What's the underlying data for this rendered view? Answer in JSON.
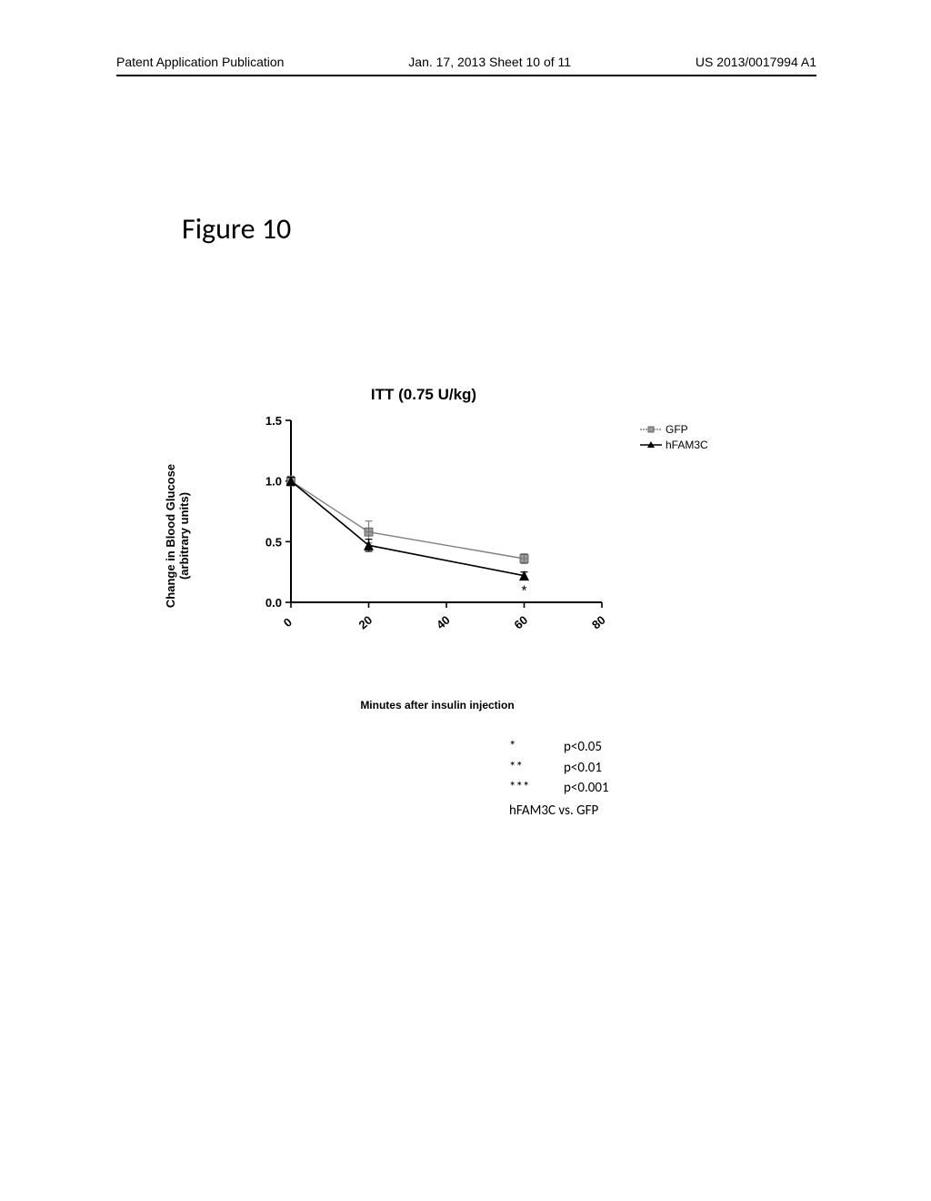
{
  "header": {
    "left": "Patent Application Publication",
    "middle": "Jan. 17, 2013  Sheet 10 of 11",
    "right": "US 2013/0017994 A1"
  },
  "figure_label": "Figure 10",
  "chart": {
    "type": "line",
    "title": "ITT (0.75 U/kg)",
    "title_fontsize": 17,
    "title_fontweight": "bold",
    "ylabel_line1": "Change in Blood Glucose",
    "ylabel_line2": "(arbitrary units)",
    "label_fontsize": 13,
    "xlabel": "Minutes after insulin injection",
    "xlim": [
      0,
      80
    ],
    "ylim": [
      0.0,
      1.5
    ],
    "xtick_step": 20,
    "ytick_step": 0.5,
    "xticks": [
      0,
      20,
      40,
      60,
      80
    ],
    "xtick_labels": [
      "0",
      "20",
      "40",
      "60",
      "80"
    ],
    "yticks": [
      0.0,
      0.5,
      1.0,
      1.5
    ],
    "ytick_labels": [
      "0.0",
      "0.5",
      "1.0",
      "1.5"
    ],
    "background_color": "#ffffff",
    "axis_color": "#000000",
    "axis_linewidth": 2,
    "tick_fontsize": 13,
    "tick_fontweight": "bold",
    "series": [
      {
        "name": "GFP",
        "color": "#808080",
        "marker": "square-hatched",
        "marker_size": 7,
        "line_width": 1.4,
        "x": [
          0,
          20,
          60
        ],
        "y": [
          1.0,
          0.58,
          0.36
        ],
        "y_err": [
          0.04,
          0.09,
          0.04
        ]
      },
      {
        "name": "hFAM3C",
        "color": "#000000",
        "marker": "triangle-up",
        "marker_size": 7,
        "line_width": 1.6,
        "x": [
          0,
          20,
          60
        ],
        "y": [
          1.0,
          0.47,
          0.22
        ],
        "y_err": [
          0.03,
          0.05,
          0.03
        ],
        "annotations": [
          {
            "x": 60,
            "label": "*"
          }
        ]
      }
    ],
    "legend": {
      "position": "right-top",
      "fontsize": 12,
      "items": [
        {
          "label": "GFP",
          "series_index": 0
        },
        {
          "label": "hFAM3C",
          "series_index": 1
        }
      ]
    }
  },
  "significance": {
    "rows": [
      {
        "symbol": "*",
        "text": "p<0.05"
      },
      {
        "symbol": "**",
        "text": "p<0.01"
      },
      {
        "symbol": "***",
        "text": "p<0.001"
      }
    ],
    "comparison": "hFAM3C vs. GFP",
    "fontsize": 15
  }
}
